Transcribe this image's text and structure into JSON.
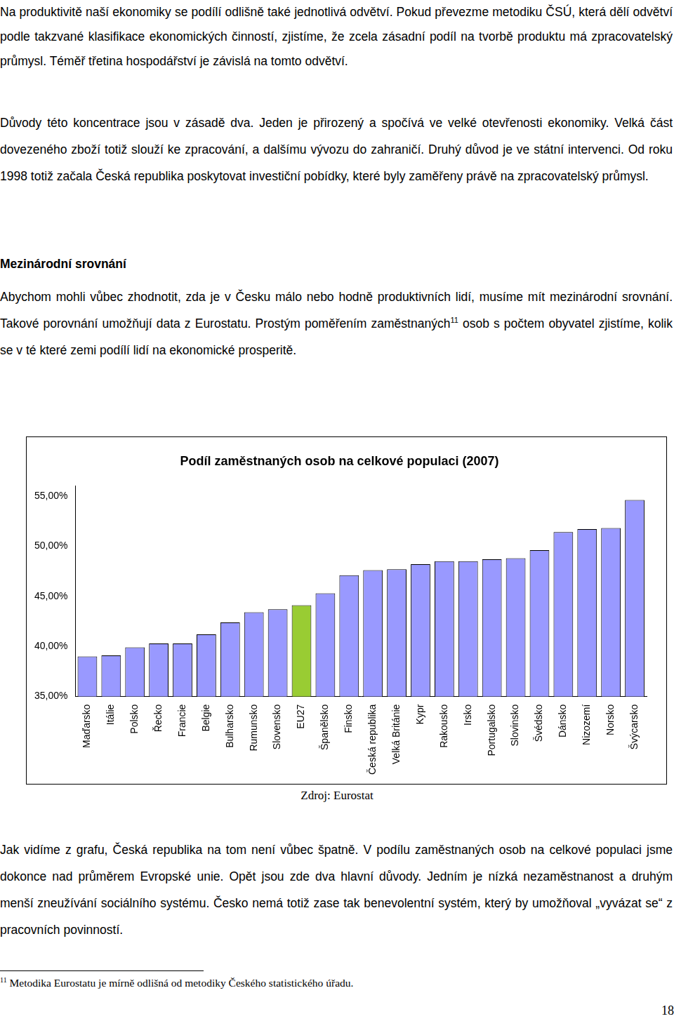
{
  "document": {
    "paragraphs_top": [
      "Na produktivitě naší ekonomiky se podílí odlišně také jednotlivá odvětví. Pokud převezme metodiku ČSÚ, která dělí odvětví podle takzvané klasifikace ekonomických činností, zjistíme, že zcela zásadní podíl na tvorbě produktu má zpracovatelský průmysl. Téměř třetina hospodářství je závislá na tomto odvětví.",
      "Důvody této koncentrace jsou v zásadě dva. Jeden je přirozený a spočívá ve velké otevřenosti ekonomiky. Velká část dovezeného zboží totiž slouží ke zpracování, a dalšímu vývozu do zahraničí. Druhý důvod je ve státní intervenci. Od roku 1998 totiž začala Česká republika poskytovat investiční pobídky, které byly zaměřeny právě na zpracovatelský průmysl."
    ],
    "heading": "Mezinárodní srovnání",
    "paragraph_intro": {
      "before": "Abychom mohli vůbec zhodnotit, zda je v Česku málo nebo hodně produktivních lidí, musíme mít mezinárodní srovnání. Takové porovnání umožňují data z Eurostatu. Prostým poměřením zaměstnaných",
      "sup": "11",
      "after": " osob s počtem obyvatel zjistíme, kolik se v té které zemi podílí lidí na ekonomické prosperitě."
    },
    "source": "Zdroj: Eurostat",
    "paragraph_after": "Jak vidíme z grafu, Česká republika na tom není vůbec špatně. V podílu zaměstnaných osob na celkové populaci jsme dokonce nad průměrem Evropské unie. Opět jsou zde dva hlavní důvody. Jedním je nízká nezaměstnanost a druhým menší zneužívání sociálního systému. Česko nemá totiž zase tak benevolentní systém, který by umožňoval „vyvázat se“ z pracovních povinností.",
    "footnote": {
      "mark": "11",
      "text": "Metodika Eurostatu je mírně odlišná od metodiky Českého statistického úřadu."
    },
    "page_number": "18"
  },
  "chart_data": {
    "type": "bar",
    "title": "Podíl zaměstnaných osob na celkové populaci (2007)",
    "categories": [
      "Maďarsko",
      "Itálie",
      "Polsko",
      "Řecko",
      "Francie",
      "Belgie",
      "Bulharsko",
      "Rumunsko",
      "Slovensko",
      "EU27",
      "Španělsko",
      "Finsko",
      "Česká republika",
      "Velká Británie",
      "Kypr",
      "Rakousko",
      "Irsko",
      "Portugalsko",
      "Slovinsko",
      "Švédsko",
      "Dánsko",
      "Nizozemí",
      "Norsko",
      "Švýcarsko"
    ],
    "values": [
      39.0,
      39.1,
      39.9,
      40.3,
      40.3,
      41.2,
      42.4,
      43.4,
      43.7,
      44.1,
      45.3,
      47.1,
      47.6,
      47.7,
      48.2,
      48.5,
      48.5,
      48.7,
      48.8,
      49.6,
      51.4,
      51.7,
      51.8,
      54.6
    ],
    "colors": [
      "#9999ff",
      "#9999ff",
      "#9999ff",
      "#9999ff",
      "#9999ff",
      "#9999ff",
      "#9999ff",
      "#9999ff",
      "#9999ff",
      "#99cc33",
      "#9999ff",
      "#9999ff",
      "#9999ff",
      "#9999ff",
      "#9999ff",
      "#9999ff",
      "#9999ff",
      "#9999ff",
      "#9999ff",
      "#9999ff",
      "#9999ff",
      "#9999ff",
      "#9999ff",
      "#9999ff"
    ],
    "ylim": [
      35,
      56
    ],
    "yticks": [
      {
        "value": 35,
        "label": "35,00%"
      },
      {
        "value": 40,
        "label": "40,00%"
      },
      {
        "value": 45,
        "label": "45,00%"
      },
      {
        "value": 50,
        "label": "50,00%"
      },
      {
        "value": 55,
        "label": "55,00%"
      }
    ],
    "grid": false
  }
}
